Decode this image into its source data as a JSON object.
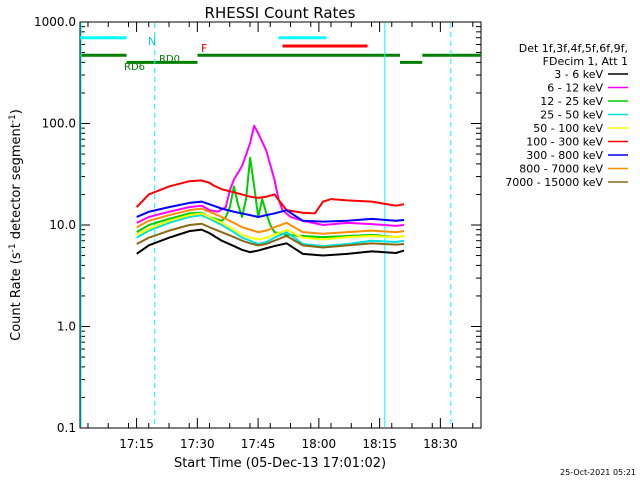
{
  "chart_data": {
    "type": "line",
    "title": "RHESSI Count Rates",
    "xlabel": "Start Time (05-Dec-13 17:01:02)",
    "ylabel_main": "Count Rate (s",
    "ylabel_sup1": "-1",
    "ylabel_mid": " detector segment",
    "ylabel_sup2": "-1",
    "ylabel_end": ")",
    "y_scale": "log",
    "xlim_minutes": [
      0,
      99
    ],
    "ylim": [
      0.1,
      1000
    ],
    "x_ticks": [
      {
        "label": "17:15",
        "minute": 13.97
      },
      {
        "label": "17:30",
        "minute": 28.97
      },
      {
        "label": "17:45",
        "minute": 43.97
      },
      {
        "label": "18:00",
        "minute": 58.97
      },
      {
        "label": "18:15",
        "minute": 73.97
      },
      {
        "label": "18:30",
        "minute": 88.97
      }
    ],
    "y_ticks": [
      {
        "label": "0.1",
        "value": 0.1
      },
      {
        "label": "1.0",
        "value": 1.0
      },
      {
        "label": "10.0",
        "value": 10.0
      },
      {
        "label": "100.0",
        "value": 100.0
      },
      {
        "label": "1000.0",
        "value": 1000.0
      }
    ],
    "legend": {
      "placement": "right",
      "header1": "Det 1f,3f,4f,5f,6f,9f,",
      "header2": "FDecim 1, Att 1",
      "entries": [
        {
          "label": "3 - 6 keV",
          "color": "#000000"
        },
        {
          "label": "6 - 12 keV",
          "color": "#ff00ff"
        },
        {
          "label": "12 - 25 keV",
          "color": "#00cc00"
        },
        {
          "label": "25 - 50 keV",
          "color": "#00e0e0"
        },
        {
          "label": "50 - 100 keV",
          "color": "#ffff00"
        },
        {
          "label": "100 - 300 keV",
          "color": "#ff0000"
        },
        {
          "label": "300 - 800 keV",
          "color": "#0000ff"
        },
        {
          "label": "800 - 7000 keV",
          "color": "#ff8c00"
        },
        {
          "label": "7000 - 15000 keV",
          "color": "#8b6914"
        }
      ]
    },
    "series": [
      {
        "name": "3 - 6 keV",
        "color": "#000000",
        "x": [
          14,
          17,
          22,
          27,
          30,
          32,
          35,
          38,
          40,
          42,
          44,
          46,
          48,
          51,
          55,
          60,
          66,
          72,
          78,
          80
        ],
        "values": [
          5.2,
          6.3,
          7.5,
          8.7,
          9.0,
          8.3,
          7.0,
          6.2,
          5.7,
          5.4,
          5.6,
          5.9,
          6.2,
          6.6,
          5.2,
          5.0,
          5.2,
          5.5,
          5.3,
          5.6
        ]
      },
      {
        "name": "6 - 12 keV",
        "color": "#ff00ff",
        "x": [
          14,
          17,
          22,
          27,
          30,
          32,
          34,
          36,
          37,
          38,
          40,
          42,
          43,
          44,
          46,
          48,
          49,
          50,
          52,
          55,
          60,
          66,
          72,
          78,
          80
        ],
        "values": [
          10.5,
          12.0,
          13.5,
          15.0,
          15.5,
          14.0,
          13.5,
          15.0,
          22,
          28,
          38,
          64,
          95,
          80,
          54,
          28,
          18,
          14,
          12,
          11,
          10,
          10.5,
          10.2,
          9.8,
          10.0
        ]
      },
      {
        "name": "12 - 25 keV",
        "color": "#00cc00",
        "x": [
          14,
          17,
          22,
          27,
          30,
          32,
          35,
          36,
          37,
          38,
          39,
          40,
          41,
          42,
          43,
          44,
          45,
          46,
          47,
          48,
          51,
          55,
          60,
          66,
          72,
          78,
          80
        ],
        "values": [
          8.5,
          10.0,
          11.5,
          13.0,
          13.2,
          12.0,
          11.0,
          12.0,
          15.0,
          24.0,
          16.0,
          12.0,
          18.0,
          46.0,
          24.0,
          12.0,
          18.0,
          13.0,
          10.0,
          8.5,
          8.0,
          7.8,
          7.6,
          7.8,
          8.0,
          7.6,
          7.8
        ]
      },
      {
        "name": "25 - 50 keV",
        "color": "#00e0e0",
        "x": [
          14,
          17,
          22,
          27,
          30,
          32,
          35,
          38,
          40,
          42,
          44,
          46,
          48,
          51,
          55,
          60,
          66,
          72,
          78,
          80
        ],
        "values": [
          7.5,
          8.8,
          10.5,
          12.0,
          12.5,
          11.5,
          10.0,
          8.5,
          7.5,
          7.0,
          6.5,
          6.8,
          7.5,
          8.5,
          6.5,
          6.2,
          6.5,
          7.0,
          6.8,
          7.0
        ]
      },
      {
        "name": "50 - 100 keV",
        "color": "#ffff00",
        "x": [
          14,
          17,
          22,
          27,
          30,
          32,
          35,
          38,
          40,
          42,
          44,
          46,
          48,
          51,
          55,
          60,
          66,
          72,
          78,
          80
        ],
        "values": [
          8.0,
          9.2,
          11.0,
          12.5,
          13.0,
          12.0,
          10.5,
          9.0,
          8.0,
          7.5,
          7.2,
          7.5,
          8.0,
          9.0,
          7.5,
          7.2,
          7.6,
          7.8,
          7.6,
          7.8
        ]
      },
      {
        "name": "100 - 300 keV",
        "color": "#ff0000",
        "x": [
          14,
          17,
          22,
          27,
          30,
          32,
          33,
          35,
          38,
          40,
          42,
          44,
          46,
          48,
          51,
          55,
          58,
          60,
          62,
          66,
          72,
          78,
          80
        ],
        "values": [
          15.0,
          20.0,
          24.0,
          27.0,
          27.5,
          26.0,
          24.5,
          22.5,
          21.0,
          20.0,
          19.0,
          18.5,
          19.0,
          20.0,
          14.0,
          13.2,
          13.0,
          17.0,
          18.0,
          17.5,
          17.0,
          15.5,
          16.0
        ]
      },
      {
        "name": "300 - 800 keV",
        "color": "#0000ff",
        "x": [
          14,
          17,
          22,
          27,
          30,
          32,
          35,
          38,
          40,
          42,
          44,
          46,
          48,
          51,
          55,
          60,
          66,
          72,
          78,
          80
        ],
        "values": [
          12.0,
          13.5,
          15.0,
          16.5,
          17.0,
          16.0,
          14.5,
          13.5,
          13.0,
          12.5,
          12.0,
          12.5,
          13.0,
          14.0,
          11.0,
          10.8,
          11.0,
          11.5,
          11.0,
          11.2
        ]
      },
      {
        "name": "800 - 7000 keV",
        "color": "#ff8c00",
        "x": [
          14,
          17,
          22,
          27,
          30,
          32,
          35,
          38,
          40,
          42,
          44,
          46,
          48,
          51,
          55,
          60,
          66,
          72,
          78,
          80
        ],
        "values": [
          9.5,
          11.0,
          12.5,
          14.0,
          14.5,
          13.5,
          12.0,
          10.5,
          9.5,
          9.0,
          8.5,
          8.8,
          9.5,
          10.5,
          8.5,
          8.2,
          8.5,
          8.8,
          8.5,
          8.7
        ]
      },
      {
        "name": "7000 - 15000 keV",
        "color": "#8b6914",
        "x": [
          14,
          17,
          22,
          27,
          30,
          32,
          35,
          38,
          40,
          42,
          44,
          46,
          48,
          51,
          55,
          60,
          66,
          72,
          78,
          80
        ],
        "values": [
          6.5,
          7.5,
          8.8,
          10.0,
          10.3,
          9.5,
          8.5,
          7.6,
          7.0,
          6.6,
          6.3,
          6.5,
          7.0,
          7.8,
          6.3,
          6.0,
          6.3,
          6.6,
          6.4,
          6.5
        ]
      }
    ],
    "segment_bars": [
      {
        "color": "#00ffff",
        "level": 700,
        "x_start": 0.0,
        "x_end": 11.5
      },
      {
        "color": "#00ffff",
        "level": 700,
        "x_start": 49.0,
        "x_end": 60.8
      },
      {
        "color": "#ff0000",
        "level": 580,
        "x_start": 50.0,
        "x_end": 71.0
      },
      {
        "color": "#008000",
        "level": 470,
        "x_start": 0.0,
        "x_end": 11.5
      },
      {
        "color": "#008000",
        "level": 470,
        "x_start": 49.0,
        "x_end": 79.0
      },
      {
        "color": "#008000",
        "level": 470,
        "x_start": 84.5,
        "x_end": 99.0
      },
      {
        "color": "#008000",
        "level": 400,
        "x_start": 11.5,
        "x_end": 29.0
      },
      {
        "color": "#008000",
        "level": 400,
        "x_start": 79.0,
        "x_end": 84.5
      },
      {
        "color": "#008000",
        "level": 470,
        "x_start": 29.0,
        "x_end": 49.0
      }
    ],
    "vlines": [
      {
        "minute": 0.0,
        "style": "solid",
        "color": "#00ffff"
      },
      {
        "minute": 18.2,
        "style": "dashed",
        "color": "#00ffff"
      },
      {
        "minute": 75.0,
        "style": "solid",
        "color": "#00ffff"
      },
      {
        "minute": 91.3,
        "style": "dashed",
        "color": "#00ffff"
      }
    ],
    "annotations": [
      {
        "text": "N",
        "color": "#00ffff"
      },
      {
        "text": "F",
        "color": "#ff0000"
      },
      {
        "text": "RD0",
        "color": "#008000"
      },
      {
        "text": "RD6",
        "color": "#008000"
      }
    ],
    "footer_date": "25-Oct-2021 05:21"
  }
}
